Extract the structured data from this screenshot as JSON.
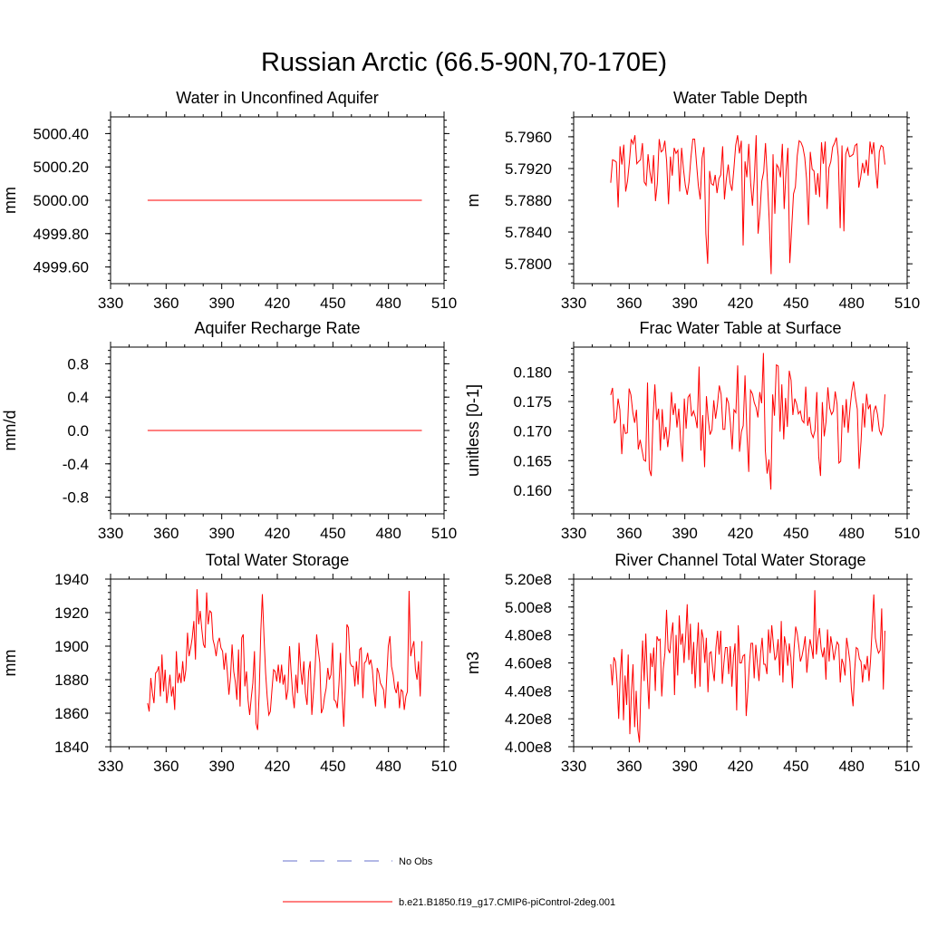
{
  "figure": {
    "title": "Russian Arctic (66.5-90N,70-170E)"
  },
  "legend": {
    "placement": "bottom-center",
    "entries": [
      {
        "label": "No Obs",
        "color": "#6670cc",
        "dash": "dashed"
      },
      {
        "label": "b.e21.B1850.f19_g17.CMIP6-piControl-2deg.001",
        "color": "#ff0000",
        "dash": "solid"
      }
    ]
  },
  "chart_data": [
    {
      "type": "line",
      "title": "Water in Unconfined Aquifer",
      "xlabel": "",
      "ylabel": "mm",
      "xlim": [
        330,
        510
      ],
      "xticks": [
        330,
        360,
        390,
        420,
        450,
        480,
        510
      ],
      "ylim": [
        4999.5,
        5000.5
      ],
      "yticks": [
        4999.6,
        4999.8,
        5000.0,
        5000.2,
        5000.4
      ],
      "ytick_labels": [
        "4999.60",
        "4999.80",
        "5000.00",
        "5000.20",
        "5000.40"
      ],
      "color": "#ff0000",
      "x_start": 350,
      "values": [
        5000.0,
        5000.0
      ]
    },
    {
      "type": "line",
      "title": "Water Table Depth",
      "xlabel": "",
      "ylabel": "m",
      "xlim": [
        330,
        510
      ],
      "xticks": [
        330,
        360,
        390,
        420,
        450,
        480,
        510
      ],
      "ylim": [
        5.7775,
        5.7985
      ],
      "yticks": [
        5.78,
        5.784,
        5.788,
        5.792,
        5.796
      ],
      "ytick_labels": [
        "5.7800",
        "5.7840",
        "5.7880",
        "5.7920",
        "5.7960"
      ],
      "color": "#ff0000",
      "x_start": 350,
      "values": [
        5.7902,
        5.7931,
        5.793,
        5.7928,
        5.7871,
        5.7948,
        5.7925,
        5.795,
        5.7891,
        5.7904,
        5.7928,
        5.7957,
        5.7951,
        5.7962,
        5.7926,
        5.7929,
        5.7931,
        5.7952,
        5.7903,
        5.7899,
        5.7938,
        5.7916,
        5.7901,
        5.7937,
        5.7879,
        5.7901,
        5.7957,
        5.7941,
        5.7943,
        5.7955,
        5.7929,
        5.7875,
        5.7935,
        5.7911,
        5.7946,
        5.7939,
        5.7943,
        5.7891,
        5.7946,
        5.7919,
        5.7899,
        5.7887,
        5.7903,
        5.7934,
        5.7957,
        5.7957,
        5.7926,
        5.7898,
        5.7881,
        5.7933,
        5.7947,
        5.7838,
        5.78,
        5.7917,
        5.7901,
        5.7899,
        5.7912,
        5.7889,
        5.7907,
        5.7912,
        5.7948,
        5.7881,
        5.7907,
        5.7925,
        5.7902,
        5.7892,
        5.7918,
        5.7949,
        5.7962,
        5.7939,
        5.7955,
        5.7823,
        5.7929,
        5.7909,
        5.7951,
        5.7902,
        5.7873,
        5.7909,
        5.7962,
        5.7838,
        5.7865,
        5.7904,
        5.7916,
        5.7952,
        5.7905,
        5.7855,
        5.7787,
        5.7938,
        5.7863,
        5.7925,
        5.7921,
        5.7909,
        5.7951,
        5.7869,
        5.7917,
        5.7946,
        5.7801,
        5.7843,
        5.7888,
        5.7897,
        5.7936,
        5.7955,
        5.7953,
        5.7947,
        5.7934,
        5.7907,
        5.7849,
        5.7941,
        5.7919,
        5.7917,
        5.7887,
        5.7914,
        5.7884,
        5.7953,
        5.7926,
        5.7954,
        5.7869,
        5.7921,
        5.7929,
        5.7947,
        5.7952,
        5.7959,
        5.7935,
        5.7845,
        5.7949,
        5.7841,
        5.7938,
        5.7946,
        5.7935,
        5.7936,
        5.7938,
        5.7949,
        5.7951,
        5.7896,
        5.7909,
        5.7927,
        5.7914,
        5.7931,
        5.7911,
        5.7954,
        5.7938,
        5.7953,
        5.7919,
        5.7895,
        5.7941,
        5.7949,
        5.7947,
        5.7925
      ]
    },
    {
      "type": "line",
      "title": "Aquifer Recharge Rate",
      "xlabel": "",
      "ylabel": "mm/d",
      "xlim": [
        330,
        510
      ],
      "xticks": [
        330,
        360,
        390,
        420,
        450,
        480,
        510
      ],
      "ylim": [
        -1.0,
        1.0
      ],
      "yticks": [
        -0.8,
        -0.4,
        0.0,
        0.4,
        0.8
      ],
      "ytick_labels": [
        "-0.8",
        "-0.4",
        "0.0",
        "0.4",
        "0.8"
      ],
      "color": "#ff0000",
      "x_start": 350,
      "values": [
        0.0,
        0.0
      ]
    },
    {
      "type": "line",
      "title": "Frac Water Table at Surface",
      "xlabel": "",
      "ylabel": "unitless [0-1]",
      "xlim": [
        330,
        510
      ],
      "xticks": [
        330,
        360,
        390,
        420,
        450,
        480,
        510
      ],
      "ylim": [
        0.156,
        0.1842
      ],
      "yticks": [
        0.16,
        0.165,
        0.17,
        0.175,
        0.18
      ],
      "ytick_labels": [
        "0.160",
        "0.165",
        "0.170",
        "0.175",
        "0.180"
      ],
      "color": "#ff0000",
      "x_start": 350,
      "values": [
        0.1761,
        0.1773,
        0.1713,
        0.172,
        0.1755,
        0.1736,
        0.1661,
        0.1712,
        0.1696,
        0.1697,
        0.1772,
        0.1761,
        0.1731,
        0.1714,
        0.1736,
        0.1669,
        0.1685,
        0.1668,
        0.1651,
        0.1649,
        0.1782,
        0.1635,
        0.1624,
        0.1721,
        0.1779,
        0.1719,
        0.1738,
        0.1667,
        0.1737,
        0.1686,
        0.1707,
        0.1673,
        0.1702,
        0.1766,
        0.1727,
        0.1747,
        0.1706,
        0.1738,
        0.1684,
        0.1648,
        0.1755,
        0.1704,
        0.1757,
        0.1762,
        0.1725,
        0.1734,
        0.1723,
        0.1705,
        0.1809,
        0.1667,
        0.1727,
        0.1639,
        0.1759,
        0.172,
        0.1694,
        0.1702,
        0.1752,
        0.1721,
        0.1745,
        0.1777,
        0.1762,
        0.1703,
        0.1703,
        0.1757,
        0.1747,
        0.1714,
        0.1669,
        0.1736,
        0.1731,
        0.1811,
        0.1665,
        0.1699,
        0.1709,
        0.1794,
        0.1696,
        0.1631,
        0.1769,
        0.1763,
        0.1748,
        0.174,
        0.1723,
        0.1766,
        0.1747,
        0.1832,
        0.1667,
        0.1628,
        0.1652,
        0.1601,
        0.1762,
        0.1726,
        0.1812,
        0.181,
        0.1699,
        0.1779,
        0.1686,
        0.1756,
        0.1707,
        0.1802,
        0.1786,
        0.1727,
        0.1755,
        0.1746,
        0.1729,
        0.1734,
        0.1718,
        0.1714,
        0.1775,
        0.1709,
        0.1724,
        0.1697,
        0.1689,
        0.1701,
        0.1766,
        0.1657,
        0.1624,
        0.1749,
        0.1691,
        0.1716,
        0.1774,
        0.1739,
        0.1728,
        0.1734,
        0.1767,
        0.1745,
        0.1646,
        0.1649,
        0.1744,
        0.1706,
        0.1754,
        0.1697,
        0.1738,
        0.1767,
        0.1784,
        0.1757,
        0.1737,
        0.1636,
        0.1682,
        0.1747,
        0.1706,
        0.1763,
        0.1737,
        0.1745,
        0.1699,
        0.1733,
        0.1743,
        0.1728,
        0.1701,
        0.1694,
        0.1708,
        0.1762
      ]
    },
    {
      "type": "line",
      "title": "Total Water Storage",
      "xlabel": "",
      "ylabel": "mm",
      "xlim": [
        330,
        510
      ],
      "xticks": [
        330,
        360,
        390,
        420,
        450,
        480,
        510
      ],
      "ylim": [
        1840,
        1940
      ],
      "yticks": [
        1840,
        1860,
        1880,
        1900,
        1920,
        1940
      ],
      "ytick_labels": [
        "1840",
        "1860",
        "1880",
        "1900",
        "1920",
        "1940"
      ],
      "color": "#ff0000",
      "x_start": 350,
      "values": [
        1866,
        1861,
        1881,
        1872,
        1866,
        1884,
        1885,
        1888,
        1870,
        1895,
        1873,
        1886,
        1866,
        1874,
        1883,
        1870,
        1876,
        1862,
        1897,
        1878,
        1884,
        1878,
        1891,
        1879,
        1886,
        1908,
        1894,
        1899,
        1905,
        1915,
        1892,
        1934,
        1913,
        1921,
        1910,
        1901,
        1899,
        1932,
        1913,
        1921,
        1920,
        1904,
        1900,
        1894,
        1902,
        1905,
        1899,
        1897,
        1886,
        1896,
        1885,
        1871,
        1882,
        1901,
        1885,
        1879,
        1868,
        1898,
        1864,
        1905,
        1907,
        1876,
        1885,
        1868,
        1859,
        1869,
        1878,
        1897,
        1854,
        1850,
        1872,
        1909,
        1931,
        1906,
        1884,
        1870,
        1859,
        1861,
        1874,
        1886,
        1885,
        1879,
        1889,
        1878,
        1889,
        1877,
        1883,
        1868,
        1874,
        1900,
        1885,
        1871,
        1863,
        1883,
        1872,
        1902,
        1886,
        1877,
        1891,
        1872,
        1865,
        1885,
        1891,
        1859,
        1872,
        1886,
        1907,
        1898,
        1890,
        1860,
        1863,
        1870,
        1875,
        1887,
        1880,
        1883,
        1902,
        1868,
        1867,
        1863,
        1877,
        1896,
        1872,
        1852,
        1875,
        1913,
        1911,
        1890,
        1888,
        1888,
        1876,
        1891,
        1877,
        1898,
        1899,
        1869,
        1890,
        1891,
        1896,
        1889,
        1892,
        1886,
        1873,
        1864,
        1887,
        1884,
        1878,
        1876,
        1874,
        1863,
        1882,
        1900,
        1906,
        1888,
        1883,
        1875,
        1872,
        1879,
        1863,
        1874,
        1873,
        1862,
        1870,
        1873,
        1933,
        1894,
        1899,
        1903,
        1886,
        1880,
        1891,
        1870,
        1903
      ]
    },
    {
      "type": "line",
      "title": "River Channel Total Water Storage",
      "xlabel": "",
      "ylabel": "m3",
      "xlim": [
        330,
        510
      ],
      "xticks": [
        330,
        360,
        390,
        420,
        450,
        480,
        510
      ],
      "ylim": [
        400000000,
        520000000
      ],
      "yticks": [
        400000000,
        420000000,
        440000000,
        460000000,
        480000000,
        500000000,
        520000000
      ],
      "ytick_labels": [
        "4.00e8",
        "4.20e8",
        "4.40e8",
        "4.60e8",
        "4.80e8",
        "5.00e8",
        "5.20e8"
      ],
      "color": "#ff0000",
      "x_start": 350,
      "values": [
        459000000,
        444000000,
        464000000,
        461000000,
        446000000,
        420000000,
        452000000,
        470000000,
        419000000,
        451000000,
        430000000,
        466000000,
        409000000,
        440000000,
        459000000,
        414000000,
        440000000,
        412000000,
        403000000,
        446000000,
        476000000,
        447000000,
        481000000,
        450000000,
        427000000,
        467000000,
        457000000,
        471000000,
        440000000,
        479000000,
        476000000,
        477000000,
        436000000,
        456000000,
        467000000,
        498000000,
        470000000,
        467000000,
        480000000,
        489000000,
        437000000,
        480000000,
        451000000,
        494000000,
        473000000,
        481000000,
        460000000,
        479000000,
        502000000,
        462000000,
        488000000,
        452000000,
        475000000,
        442000000,
        469000000,
        489000000,
        443000000,
        484000000,
        478000000,
        460000000,
        478000000,
        439000000,
        467000000,
        468000000,
        455000000,
        447000000,
        471000000,
        483000000,
        466000000,
        483000000,
        445000000,
        460000000,
        471000000,
        471000000,
        452000000,
        472000000,
        443000000,
        464000000,
        474000000,
        426000000,
        487000000,
        460000000,
        460000000,
        465000000,
        466000000,
        422000000,
        440000000,
        459000000,
        474000000,
        474000000,
        449000000,
        473000000,
        460000000,
        447000000,
        467000000,
        478000000,
        459000000,
        459000000,
        452000000,
        484000000,
        467000000,
        487000000,
        474000000,
        462000000,
        465000000,
        477000000,
        451000000,
        490000000,
        446000000,
        479000000,
        472000000,
        458000000,
        474000000,
        464000000,
        442000000,
        470000000,
        486000000,
        481000000,
        472000000,
        461000000,
        465000000,
        471000000,
        479000000,
        453000000,
        466000000,
        477000000,
        471000000,
        463000000,
        512000000,
        466000000,
        478000000,
        485000000,
        470000000,
        464000000,
        471000000,
        448000000,
        484000000,
        461000000,
        479000000,
        472000000,
        462000000,
        469000000,
        475000000,
        473000000,
        446000000,
        463000000,
        459000000,
        451000000,
        478000000,
        470000000,
        461000000,
        441000000,
        429000000,
        454000000,
        471000000,
        470000000,
        463000000,
        461000000,
        446000000,
        459000000,
        455000000,
        465000000,
        447000000,
        462000000,
        485000000,
        509000000,
        478000000,
        471000000,
        467000000,
        469000000,
        499000000,
        441000000,
        483000000
      ]
    }
  ]
}
